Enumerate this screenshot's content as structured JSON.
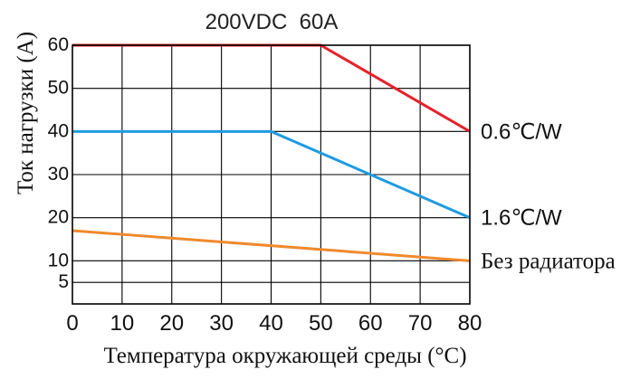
{
  "chart_data": {
    "type": "line",
    "title": "200VDC  60A",
    "xlabel": "Температура окружающей среды (°C)",
    "ylabel": "Ток нагрузки (A)",
    "xlim": [
      0,
      80
    ],
    "ylim": [
      0,
      60
    ],
    "x_ticks": [
      "0",
      "10",
      "20",
      "30",
      "40",
      "50",
      "60",
      "70",
      "80"
    ],
    "y_ticks": [
      {
        "label": "60",
        "value": 60
      },
      {
        "label": "50",
        "value": 50
      },
      {
        "label": "40",
        "value": 40
      },
      {
        "label": "30",
        "value": 30
      },
      {
        "label": "20",
        "value": 20
      },
      {
        "label": "10",
        "value": 10
      },
      {
        "label": "5",
        "value": 5
      }
    ],
    "grid": true,
    "series": [
      {
        "name": "0.6℃/W",
        "color": "#e8202a",
        "x": [
          0,
          50,
          80
        ],
        "y": [
          60,
          60,
          40
        ]
      },
      {
        "name": "1.6℃/W",
        "color": "#1e9be0",
        "x": [
          0,
          40,
          80
        ],
        "y": [
          40,
          40,
          20
        ]
      },
      {
        "name": "Без радиатора",
        "color": "#f08a2c",
        "x": [
          0,
          80
        ],
        "y": [
          17,
          10
        ]
      }
    ]
  }
}
